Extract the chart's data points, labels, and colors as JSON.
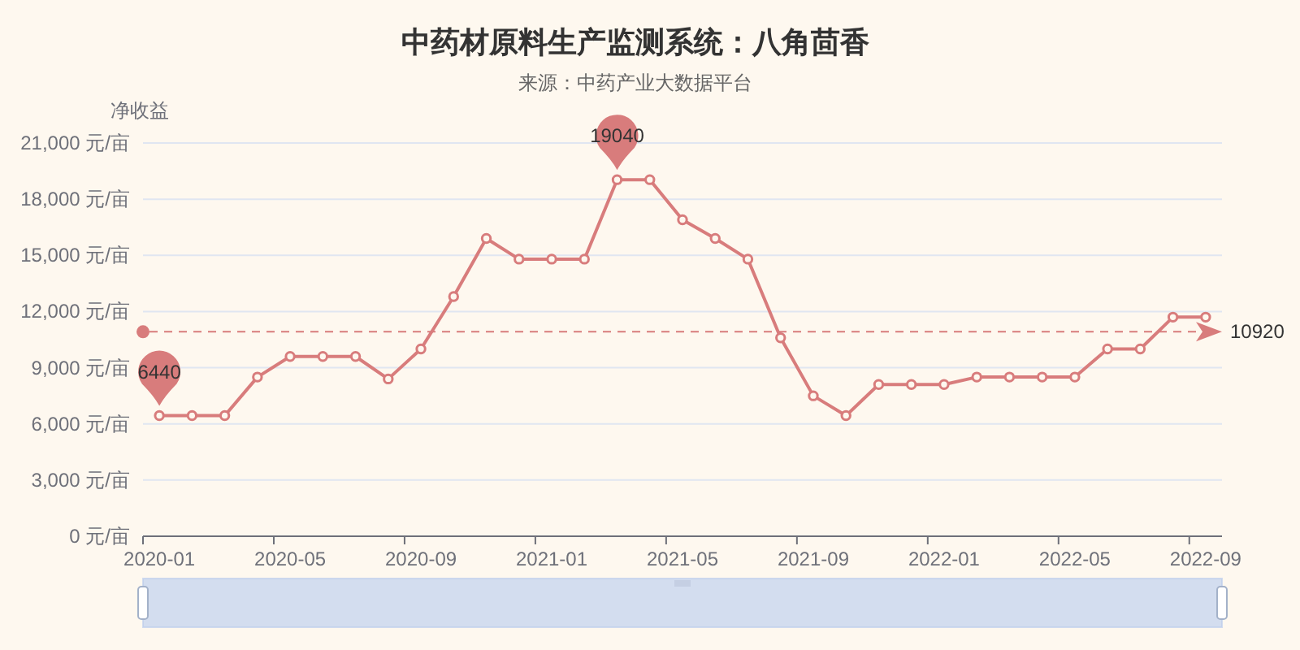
{
  "chart_data": {
    "type": "line",
    "title": "中药材原料生产监测系统：八角茴香",
    "subtitle": "来源：中药产业大数据平台",
    "ylabel": "净收益",
    "categories": [
      "2020-01",
      null,
      null,
      null,
      "2020-05",
      null,
      null,
      null,
      "2020-09",
      null,
      null,
      null,
      "2021-01",
      null,
      null,
      null,
      "2021-05",
      null,
      null,
      null,
      "2021-09",
      null,
      null,
      null,
      "2022-01",
      null,
      null,
      null,
      "2022-05",
      null,
      null,
      null,
      "2022-09"
    ],
    "series": [
      {
        "color": "#d87c7c",
        "values": [
          6440,
          6440,
          6440,
          8500,
          9600,
          9600,
          9600,
          8400,
          10000,
          12800,
          15900,
          14800,
          14800,
          14800,
          19040,
          19040,
          16900,
          15900,
          14800,
          10600,
          7500,
          6440,
          8100,
          8100,
          8100,
          8500,
          8500,
          8500,
          8500,
          10000,
          10000,
          11700,
          11700
        ],
        "value_labels": [
          "6440",
          null,
          null,
          null,
          null,
          null,
          null,
          null,
          null,
          null,
          null,
          null,
          null,
          null,
          "19040",
          null,
          null,
          null,
          null,
          null,
          null,
          null,
          null,
          null,
          null,
          null,
          null,
          null,
          null,
          null,
          null,
          null,
          null
        ]
      }
    ],
    "ylim": [
      0,
      21000
    ],
    "yticks": [
      {
        "value": 0,
        "label": "0 元/亩"
      },
      {
        "value": 3000,
        "label": "3,000 元/亩"
      },
      {
        "value": 6000,
        "label": "6,000 元/亩"
      },
      {
        "value": 9000,
        "label": "9,000 元/亩"
      },
      {
        "value": 12000,
        "label": "12,000 元/亩"
      },
      {
        "value": 15000,
        "label": "15,000 元/亩"
      },
      {
        "value": 18000,
        "label": "18,000 元/亩"
      },
      {
        "value": 21000,
        "label": "21,000 元/亩"
      }
    ],
    "grid": "y",
    "marker": "circle",
    "line_style": "solid",
    "ref_lines": [
      {
        "axis": "y",
        "value": 10920,
        "label": "10920",
        "color": "#d87c7c",
        "line_style": "dashed"
      }
    ]
  }
}
